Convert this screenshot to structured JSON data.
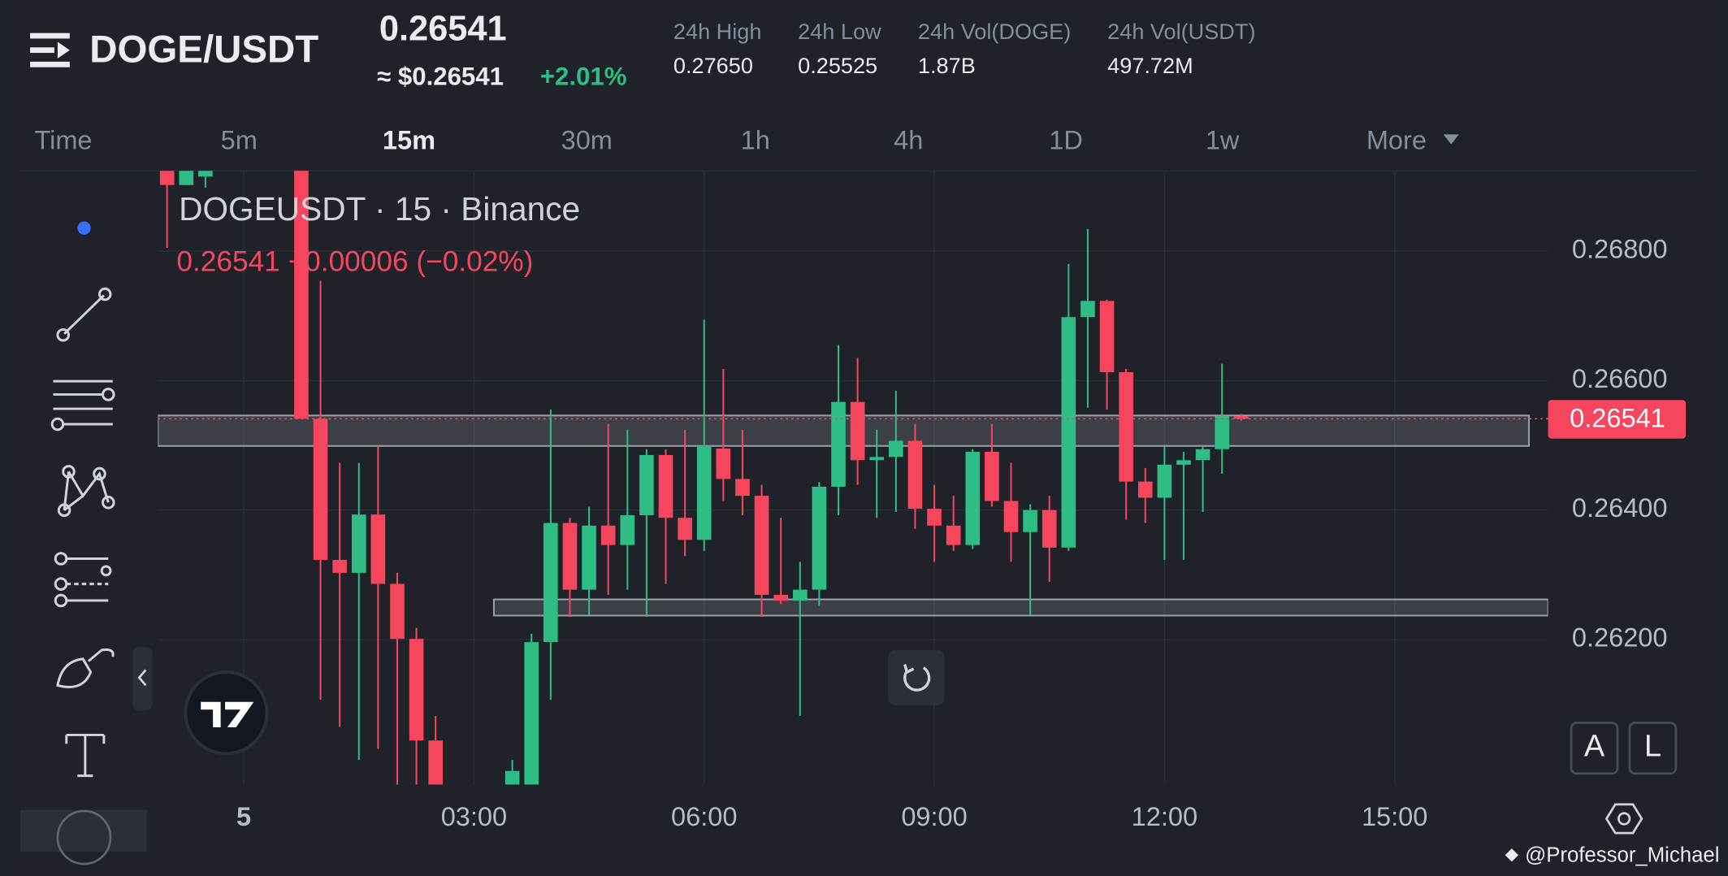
{
  "header": {
    "pair": "DOGE/USDT",
    "price": "0.26541",
    "approx": "≈ $0.26541",
    "change": "+2.01%",
    "stats": [
      {
        "label": "24h High",
        "value": "0.27650"
      },
      {
        "label": "24h Low",
        "value": "0.25525"
      },
      {
        "label": "24h Vol(DOGE)",
        "value": "1.87B"
      },
      {
        "label": "24h Vol(USDT)",
        "value": "497.72M"
      }
    ]
  },
  "tabs": [
    "Time",
    "5m",
    "15m",
    "30m",
    "1h",
    "4h",
    "1D",
    "1w",
    "More"
  ],
  "chart_data": {
    "type": "candlestick",
    "title": "DOGEUSDT · 15 · Binance",
    "subtitle": "0.26541 −0.00006 (−0.02%)",
    "x": [
      -1,
      -0.75,
      -0.5,
      0.75,
      1,
      1.25,
      1.5,
      1.75,
      2,
      2.25,
      2.5,
      3.5,
      3.75,
      4,
      4.25,
      4.5,
      4.75,
      5,
      5.25,
      5.5,
      5.75,
      6,
      6.25,
      6.5,
      6.75,
      7,
      7.25,
      7.5,
      7.75,
      8,
      8.25,
      8.5,
      8.75,
      9,
      9.25,
      9.5,
      9.75,
      10,
      10.25,
      10.5,
      10.75,
      11,
      11.25,
      11.5,
      11.75,
      12,
      12.25,
      12.5,
      12.75,
      13
    ],
    "open": [
      0.26924,
      0.26902,
      0.26915,
      0.26933,
      0.26541,
      0.26323,
      0.26303,
      0.26393,
      0.26286,
      0.26201,
      0.26044,
      0.25976,
      0.25976,
      0.26196,
      0.2638,
      0.26277,
      0.26376,
      0.26346,
      0.26392,
      0.26485,
      0.26388,
      0.26354,
      0.26495,
      0.26448,
      0.26422,
      0.26269,
      0.2626,
      0.26277,
      0.26436,
      0.26567,
      0.26477,
      0.26482,
      0.26507,
      0.26402,
      0.26376,
      0.26346,
      0.2649,
      0.26414,
      0.26366,
      0.264,
      0.26342,
      0.26698,
      0.26723,
      0.26613,
      0.26444,
      0.26419,
      0.2647,
      0.26477,
      0.26494,
      0.26545
    ],
    "high": [
      0.26924,
      0.26924,
      0.26924,
      0.26933,
      0.26754,
      0.26473,
      0.26473,
      0.26499,
      0.26303,
      0.26218,
      0.26082,
      0.26014,
      0.26209,
      0.26555,
      0.26388,
      0.26405,
      0.26533,
      0.26524,
      0.26494,
      0.26494,
      0.26524,
      0.26694,
      0.26618,
      0.26524,
      0.26439,
      0.26388,
      0.2632,
      0.26443,
      0.26655,
      0.26635,
      0.26524,
      0.26584,
      0.26533,
      0.26439,
      0.26422,
      0.26494,
      0.26533,
      0.26473,
      0.26409,
      0.26422,
      0.2678,
      0.26834,
      0.26725,
      0.26618,
      0.26465,
      0.26499,
      0.2649,
      0.26499,
      0.26626,
      0.26548
    ],
    "low": [
      0.26805,
      0.26902,
      0.26898,
      0.26541,
      0.26107,
      0.26065,
      0.26014,
      0.26031,
      0.25976,
      0.25976,
      0.25976,
      0.25976,
      0.25976,
      0.26107,
      0.26235,
      0.26238,
      0.26269,
      0.26277,
      0.26235,
      0.26286,
      0.26329,
      0.26337,
      0.26414,
      0.26392,
      0.26235,
      0.26255,
      0.26082,
      0.26252,
      0.26392,
      0.26439,
      0.26388,
      0.26397,
      0.26371,
      0.2632,
      0.26337,
      0.2634,
      0.26405,
      0.2632,
      0.26238,
      0.26289,
      0.26337,
      0.26558,
      0.26555,
      0.26385,
      0.2638,
      0.26323,
      0.26323,
      0.26397,
      0.26456,
      0.26538
    ],
    "close": [
      0.26902,
      0.26924,
      0.26924,
      0.26541,
      0.26323,
      0.26303,
      0.26393,
      0.26286,
      0.26201,
      0.26044,
      0.25976,
      0.25997,
      0.26196,
      0.2638,
      0.26277,
      0.26376,
      0.26346,
      0.26392,
      0.26485,
      0.26388,
      0.26354,
      0.26499,
      0.26448,
      0.26422,
      0.26269,
      0.2626,
      0.26277,
      0.26436,
      0.26567,
      0.26477,
      0.26482,
      0.26507,
      0.26402,
      0.26376,
      0.26346,
      0.2649,
      0.26414,
      0.26366,
      0.264,
      0.26342,
      0.26698,
      0.26723,
      0.26613,
      0.26444,
      0.26419,
      0.2647,
      0.26477,
      0.26494,
      0.26545,
      0.26541
    ],
    "up_color": "#2ebd85",
    "down_color": "#f6465d",
    "xlim": [
      -1.12,
      17
    ],
    "xticks": [
      {
        "value": 0,
        "label": "5"
      },
      {
        "value": 3,
        "label": "03:00"
      },
      {
        "value": 6,
        "label": "06:00"
      },
      {
        "value": 9,
        "label": "09:00"
      },
      {
        "value": 12,
        "label": "12:00"
      },
      {
        "value": 15,
        "label": "15:00"
      }
    ],
    "ylim": [
      0.25976,
      0.26924
    ],
    "yticks": [
      {
        "value": 0.262,
        "label": "0.26200"
      },
      {
        "value": 0.264,
        "label": "0.26400"
      },
      {
        "value": 0.266,
        "label": "0.26600"
      },
      {
        "value": 0.268,
        "label": "0.26800"
      }
    ],
    "grid": true,
    "last_price": 0.26541,
    "zones": [
      {
        "x": [
          -1.12,
          16.75
        ],
        "y": [
          0.26499,
          0.26546
        ]
      },
      {
        "x": [
          3.26,
          17
        ],
        "y": [
          0.26237,
          0.26262
        ]
      }
    ]
  },
  "buttons": [
    "A",
    "L"
  ],
  "watermark": "@Professor_Michael"
}
